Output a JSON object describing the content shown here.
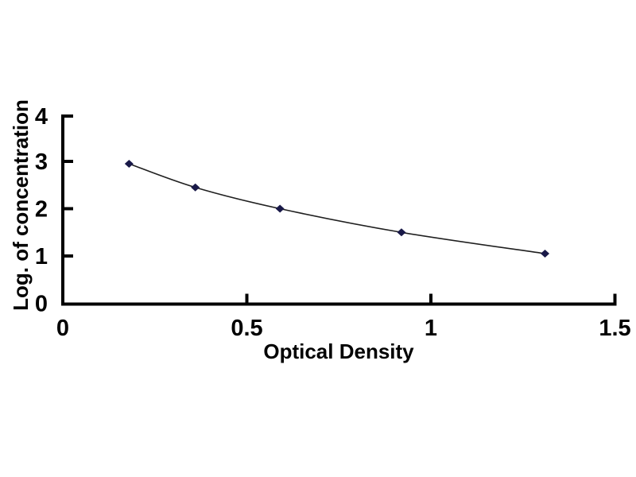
{
  "figure": {
    "background": "#ffffff",
    "kind": "ELISA standard curve"
  },
  "chart_data": {
    "type": "line",
    "title": "",
    "xlabel": "Optical Density",
    "ylabel": "Log. of concentration",
    "grid": false,
    "legend": "none",
    "xlim": [
      0,
      1.5
    ],
    "ylim": [
      0,
      4
    ],
    "xticks": {
      "values": [
        0,
        0.5,
        1,
        1.5
      ],
      "labels": [
        "0",
        "0.5",
        "1",
        "1.5"
      ]
    },
    "yticks": {
      "values": [
        0,
        1,
        2,
        3,
        4
      ],
      "labels": [
        "0",
        "1",
        "2",
        "3",
        "4"
      ]
    },
    "axis_color": "#000000",
    "text_color": "#000000",
    "series": [
      {
        "name": "standard-curve",
        "marker": "diamond",
        "marker_color": "#191948",
        "line_color": "#1f1f1f",
        "points": [
          {
            "x": 0.18,
            "y": 2.95
          },
          {
            "x": 0.36,
            "y": 2.45
          },
          {
            "x": 0.59,
            "y": 2.0
          },
          {
            "x": 0.92,
            "y": 1.5
          },
          {
            "x": 1.31,
            "y": 1.05
          }
        ]
      }
    ]
  }
}
